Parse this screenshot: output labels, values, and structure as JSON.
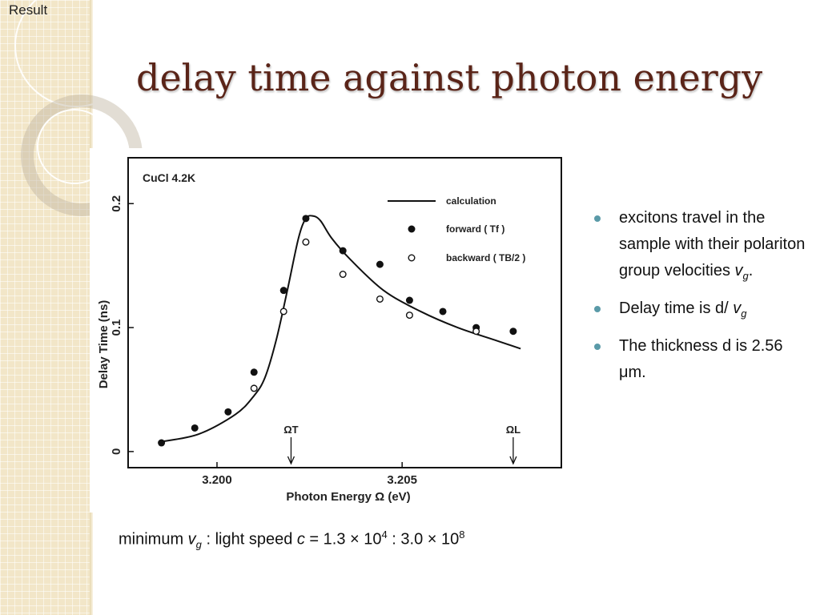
{
  "tab_label": "Result",
  "title": "delay time against photon energy",
  "bullets": [
    {
      "text": "excitons travel in the sample with their polariton group velocities ",
      "var": "v",
      "sub": "g",
      "tail": "."
    },
    {
      "text": "Delay time is d/ ",
      "var": "v",
      "sub": "g",
      "tail": ""
    },
    {
      "text": "The thickness d is 2.56 μm.",
      "var": "",
      "sub": "",
      "tail": ""
    }
  ],
  "caption": {
    "pre": "minimum ",
    "var": "v",
    "sub": "g",
    "mid": " : light speed ",
    "var2": "c",
    "eq": " = 1.3 × 10",
    "exp1": "4",
    "sep": " : 3.0 × 10",
    "exp2": "8"
  },
  "chart_data": {
    "type": "scatter",
    "annotation": "CuCl   4.2K",
    "xlabel": "Photon   Energy   Ω    (eV)",
    "ylabel": "Delay   Time   (ns)",
    "xlim": [
      3.1976,
      3.2093
    ],
    "ylim": [
      -0.013,
      0.237
    ],
    "x_ticks": [
      {
        "value": 3.2,
        "label": "3.200"
      },
      {
        "value": 3.205,
        "label": "3.205"
      }
    ],
    "y_ticks": [
      {
        "value": 0,
        "label": "0"
      },
      {
        "value": 0.1,
        "label": "0.1"
      },
      {
        "value": 0.2,
        "label": "0.2"
      }
    ],
    "markers": [
      {
        "x": 3.202,
        "label": "ΩT"
      },
      {
        "x": 3.208,
        "label": "ΩL"
      }
    ],
    "legend_position": "top-right",
    "series": [
      {
        "name": "calculation",
        "kind": "line",
        "x": [
          3.1985,
          3.1995,
          3.2005,
          3.201,
          3.2013,
          3.2016,
          3.2019,
          3.2022,
          3.2024,
          3.2026,
          3.2028,
          3.2031,
          3.2036,
          3.2045,
          3.2055,
          3.2065,
          3.2075,
          3.2082
        ],
        "y": [
          0.008,
          0.014,
          0.03,
          0.045,
          0.06,
          0.09,
          0.13,
          0.172,
          0.188,
          0.19,
          0.186,
          0.172,
          0.155,
          0.13,
          0.113,
          0.1,
          0.09,
          0.083
        ]
      },
      {
        "name": "forward   ( Tf )",
        "kind": "filled",
        "x": [
          3.1985,
          3.1994,
          3.2003,
          3.201,
          3.2018,
          3.2024,
          3.2034,
          3.2044,
          3.2052,
          3.2061,
          3.207,
          3.208
        ],
        "y": [
          0.007,
          0.019,
          0.032,
          0.064,
          0.13,
          0.188,
          0.162,
          0.151,
          0.122,
          0.113,
          0.1,
          0.097
        ]
      },
      {
        "name": "backward   ( TB/2 )",
        "kind": "open",
        "x": [
          3.201,
          3.2018,
          3.2024,
          3.2034,
          3.2044,
          3.2052,
          3.207
        ],
        "y": [
          0.051,
          0.113,
          0.169,
          0.143,
          0.123,
          0.11,
          0.097
        ]
      }
    ]
  }
}
